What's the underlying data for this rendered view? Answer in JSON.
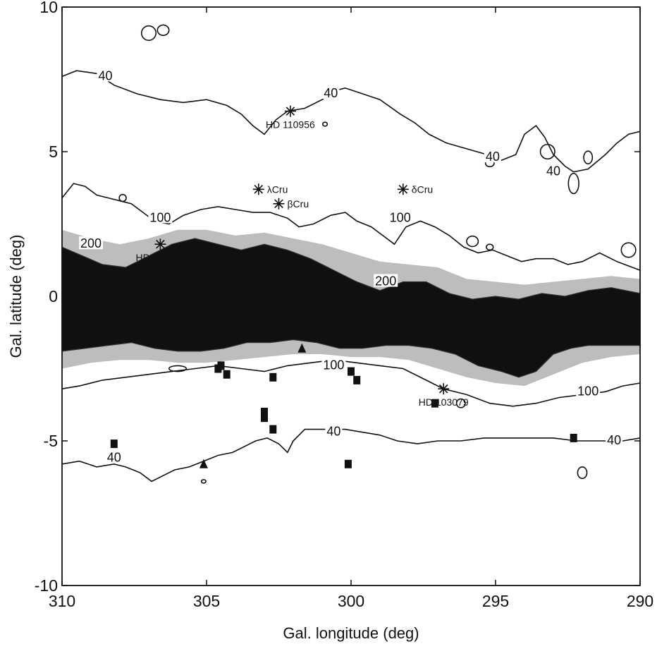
{
  "chart_data": {
    "type": "contour",
    "xlabel": "Gal. longitude (deg)",
    "ylabel": "Gal. latitude (deg)",
    "xlim": [
      310,
      290
    ],
    "ylim": [
      -10,
      10
    ],
    "x_ticks": [
      310,
      305,
      300,
      295,
      290
    ],
    "y_ticks": [
      10,
      5,
      0,
      -5,
      -10
    ],
    "x_tick_labels": [
      "310",
      "305",
      "300",
      "295",
      "290"
    ],
    "y_tick_labels": [
      "10",
      "5",
      "0",
      "-5",
      "-10"
    ],
    "grid": false,
    "contour_levels": [
      40,
      100,
      200
    ],
    "contour_labels": [
      {
        "text": "40",
        "l": 308.5,
        "b": 7.6
      },
      {
        "text": "40",
        "l": 300.7,
        "b": 7.0
      },
      {
        "text": "40",
        "l": 295.1,
        "b": 4.8
      },
      {
        "text": "40",
        "l": 293.0,
        "b": 4.3
      },
      {
        "text": "100",
        "l": 306.6,
        "b": 2.7
      },
      {
        "text": "100",
        "l": 298.3,
        "b": 2.7
      },
      {
        "text": "200",
        "l": 309.0,
        "b": 1.8
      },
      {
        "text": "200",
        "l": 298.8,
        "b": 0.5
      },
      {
        "text": "100",
        "l": 300.6,
        "b": -2.4
      },
      {
        "text": "100",
        "l": 291.8,
        "b": -3.3
      },
      {
        "text": "40",
        "l": 300.6,
        "b": -4.7
      },
      {
        "text": "40",
        "l": 308.2,
        "b": -5.6
      },
      {
        "text": "40",
        "l": 290.9,
        "b": -5.0
      }
    ],
    "stars": [
      {
        "name": "HD 110956",
        "l": 302.1,
        "b": 6.4
      },
      {
        "name": "λCru",
        "l": 303.2,
        "b": 3.7
      },
      {
        "name": "βCru",
        "l": 302.5,
        "b": 3.2
      },
      {
        "name": "δCru",
        "l": 298.2,
        "b": 3.7
      },
      {
        "name": "HD 116087",
        "l": 306.6,
        "b": 1.8
      },
      {
        "name": "HD 103079",
        "l": 296.8,
        "b": -3.2
      }
    ],
    "squares": [
      {
        "l": 304.6,
        "b": -2.5
      },
      {
        "l": 304.5,
        "b": -2.4
      },
      {
        "l": 304.3,
        "b": -2.7
      },
      {
        "l": 302.7,
        "b": -2.8
      },
      {
        "l": 303.0,
        "b": -4.0
      },
      {
        "l": 303.0,
        "b": -4.2
      },
      {
        "l": 302.7,
        "b": -4.6
      },
      {
        "l": 308.2,
        "b": -5.1
      },
      {
        "l": 300.1,
        "b": -5.8
      },
      {
        "l": 300.0,
        "b": -2.6
      },
      {
        "l": 299.8,
        "b": -2.9
      },
      {
        "l": 297.1,
        "b": -3.7
      },
      {
        "l": 292.3,
        "b": -4.9
      }
    ],
    "triangles": [
      {
        "l": 301.7,
        "b": -1.8
      },
      {
        "l": 305.1,
        "b": -5.8
      }
    ],
    "contour_40_north": [
      [
        310,
        7.6
      ],
      [
        309.5,
        7.8
      ],
      [
        308.8,
        7.7
      ],
      [
        308.2,
        7.3
      ],
      [
        307.4,
        7.0
      ],
      [
        306.6,
        6.8
      ],
      [
        305.8,
        6.7
      ],
      [
        305.0,
        6.8
      ],
      [
        304.3,
        6.6
      ],
      [
        303.8,
        6.3
      ],
      [
        303.4,
        5.9
      ],
      [
        303.0,
        5.6
      ],
      [
        302.6,
        6.1
      ],
      [
        302.2,
        6.4
      ],
      [
        301.6,
        6.5
      ],
      [
        301.0,
        6.8
      ],
      [
        300.6,
        7.1
      ],
      [
        300.2,
        7.2
      ],
      [
        299.6,
        7.0
      ],
      [
        299.0,
        6.8
      ],
      [
        298.3,
        6.3
      ],
      [
        297.8,
        6.0
      ],
      [
        297.3,
        5.6
      ],
      [
        296.7,
        5.3
      ],
      [
        296.0,
        5.1
      ],
      [
        295.3,
        4.9
      ],
      [
        294.8,
        4.7
      ],
      [
        294.3,
        4.9
      ],
      [
        294.0,
        5.6
      ],
      [
        293.6,
        5.9
      ],
      [
        293.3,
        5.5
      ],
      [
        293.0,
        4.9
      ],
      [
        292.6,
        4.5
      ],
      [
        292.3,
        4.3
      ],
      [
        291.8,
        4.4
      ],
      [
        291.2,
        4.9
      ],
      [
        290.8,
        5.3
      ],
      [
        290.4,
        5.6
      ],
      [
        290.0,
        5.7
      ]
    ],
    "contour_100_north": [
      [
        310,
        3.4
      ],
      [
        309.6,
        3.9
      ],
      [
        309.2,
        3.8
      ],
      [
        308.8,
        3.5
      ],
      [
        308.4,
        3.4
      ],
      [
        308.0,
        3.3
      ],
      [
        307.6,
        3.2
      ],
      [
        307.2,
        2.9
      ],
      [
        306.8,
        2.6
      ],
      [
        306.3,
        2.5
      ],
      [
        305.8,
        2.8
      ],
      [
        305.2,
        3.0
      ],
      [
        304.6,
        3.1
      ],
      [
        304.0,
        3.0
      ],
      [
        303.4,
        2.9
      ],
      [
        302.8,
        2.9
      ],
      [
        302.2,
        2.7
      ],
      [
        301.8,
        2.4
      ],
      [
        301.3,
        2.5
      ],
      [
        300.7,
        2.8
      ],
      [
        300.2,
        2.9
      ],
      [
        299.8,
        2.6
      ],
      [
        299.3,
        2.4
      ],
      [
        298.9,
        2.1
      ],
      [
        298.5,
        1.8
      ],
      [
        298.1,
        2.4
      ],
      [
        297.6,
        2.6
      ],
      [
        297.1,
        2.4
      ],
      [
        296.6,
        2.1
      ],
      [
        296.1,
        1.7
      ],
      [
        295.6,
        1.5
      ],
      [
        295.1,
        1.6
      ],
      [
        294.6,
        1.4
      ],
      [
        294.1,
        1.2
      ],
      [
        293.6,
        1.3
      ],
      [
        293.0,
        1.3
      ],
      [
        292.5,
        1.1
      ],
      [
        292.0,
        1.2
      ],
      [
        291.4,
        1.5
      ],
      [
        290.8,
        1.2
      ],
      [
        290.0,
        0.9
      ]
    ],
    "contour_100_south": [
      [
        310,
        -3.2
      ],
      [
        309.4,
        -3.1
      ],
      [
        308.6,
        -2.9
      ],
      [
        307.8,
        -2.8
      ],
      [
        307.0,
        -2.7
      ],
      [
        306.2,
        -2.6
      ],
      [
        305.4,
        -2.5
      ],
      [
        304.6,
        -2.4
      ],
      [
        303.8,
        -2.5
      ],
      [
        303.0,
        -2.6
      ],
      [
        302.2,
        -2.4
      ],
      [
        301.4,
        -2.3
      ],
      [
        300.6,
        -2.2
      ],
      [
        299.8,
        -2.3
      ],
      [
        299.0,
        -2.4
      ],
      [
        298.2,
        -2.5
      ],
      [
        297.4,
        -2.9
      ],
      [
        296.8,
        -3.2
      ],
      [
        296.0,
        -3.4
      ],
      [
        295.2,
        -3.7
      ],
      [
        294.4,
        -3.8
      ],
      [
        293.6,
        -3.7
      ],
      [
        292.8,
        -3.5
      ],
      [
        292.0,
        -3.4
      ],
      [
        291.2,
        -3.3
      ],
      [
        290.6,
        -3.1
      ],
      [
        290.0,
        -3.0
      ]
    ],
    "contour_40_south": [
      [
        310,
        -5.8
      ],
      [
        309.4,
        -5.7
      ],
      [
        308.8,
        -5.9
      ],
      [
        308.2,
        -5.8
      ],
      [
        307.8,
        -5.9
      ],
      [
        307.3,
        -6.1
      ],
      [
        306.9,
        -6.4
      ],
      [
        306.5,
        -6.2
      ],
      [
        306.1,
        -6.0
      ],
      [
        305.6,
        -5.9
      ],
      [
        305.1,
        -5.7
      ],
      [
        304.6,
        -5.5
      ],
      [
        304.1,
        -5.4
      ],
      [
        303.7,
        -5.2
      ],
      [
        303.3,
        -5.0
      ],
      [
        302.9,
        -4.9
      ],
      [
        302.5,
        -5.1
      ],
      [
        302.2,
        -5.4
      ],
      [
        302.0,
        -5.0
      ],
      [
        301.6,
        -4.6
      ],
      [
        301.2,
        -4.6
      ],
      [
        300.7,
        -4.6
      ],
      [
        300.2,
        -4.6
      ],
      [
        299.6,
        -4.7
      ],
      [
        299.0,
        -4.8
      ],
      [
        298.4,
        -5.0
      ],
      [
        297.7,
        -5.1
      ],
      [
        297.0,
        -5.0
      ],
      [
        296.2,
        -5.0
      ],
      [
        295.4,
        -4.9
      ],
      [
        294.6,
        -4.9
      ],
      [
        293.8,
        -4.9
      ],
      [
        293.0,
        -4.9
      ],
      [
        292.2,
        -5.0
      ],
      [
        291.4,
        -5.0
      ],
      [
        290.6,
        -5.0
      ],
      [
        290.0,
        -4.9
      ]
    ],
    "dense_band_top": [
      [
        310,
        1.7
      ],
      [
        309.3,
        1.4
      ],
      [
        308.6,
        1.1
      ],
      [
        307.8,
        1.0
      ],
      [
        307.0,
        1.4
      ],
      [
        306.2,
        1.8
      ],
      [
        305.4,
        2.0
      ],
      [
        304.6,
        1.8
      ],
      [
        303.8,
        1.6
      ],
      [
        303.0,
        1.8
      ],
      [
        302.2,
        1.6
      ],
      [
        301.4,
        1.3
      ],
      [
        300.6,
        0.9
      ],
      [
        299.8,
        0.5
      ],
      [
        299.0,
        0.2
      ],
      [
        298.2,
        0.5
      ],
      [
        297.4,
        0.5
      ],
      [
        296.6,
        0.1
      ],
      [
        295.8,
        -0.1
      ],
      [
        295.0,
        0.0
      ],
      [
        294.2,
        -0.1
      ],
      [
        293.4,
        0.1
      ],
      [
        292.6,
        0.0
      ],
      [
        291.8,
        0.2
      ],
      [
        291.0,
        0.3
      ],
      [
        290.0,
        0.1
      ]
    ],
    "dense_band_bottom": [
      [
        310,
        -1.9
      ],
      [
        309.2,
        -1.8
      ],
      [
        308.4,
        -1.7
      ],
      [
        307.6,
        -1.6
      ],
      [
        306.8,
        -1.8
      ],
      [
        306.0,
        -1.9
      ],
      [
        305.2,
        -1.9
      ],
      [
        304.4,
        -1.8
      ],
      [
        303.6,
        -1.6
      ],
      [
        302.8,
        -1.6
      ],
      [
        302.0,
        -1.5
      ],
      [
        301.2,
        -1.6
      ],
      [
        300.4,
        -1.8
      ],
      [
        299.6,
        -1.8
      ],
      [
        298.8,
        -1.7
      ],
      [
        298.0,
        -1.7
      ],
      [
        297.2,
        -1.8
      ],
      [
        296.4,
        -2.0
      ],
      [
        295.6,
        -2.4
      ],
      [
        294.8,
        -2.6
      ],
      [
        294.2,
        -2.8
      ],
      [
        293.6,
        -2.6
      ],
      [
        293.0,
        -2.0
      ],
      [
        292.4,
        -1.8
      ],
      [
        291.8,
        -1.7
      ],
      [
        291.0,
        -1.7
      ],
      [
        290.0,
        -1.7
      ]
    ],
    "halo_top": [
      [
        310,
        2.3
      ],
      [
        309.0,
        2.0
      ],
      [
        308.0,
        1.8
      ],
      [
        307.0,
        2.0
      ],
      [
        306.0,
        2.3
      ],
      [
        305.0,
        2.3
      ],
      [
        304.0,
        2.1
      ],
      [
        303.0,
        2.2
      ],
      [
        302.0,
        2.0
      ],
      [
        301.0,
        1.8
      ],
      [
        300.0,
        1.5
      ],
      [
        299.0,
        1.2
      ],
      [
        298.0,
        1.1
      ],
      [
        297.0,
        1.0
      ],
      [
        296.0,
        0.6
      ],
      [
        295.0,
        0.5
      ],
      [
        294.0,
        0.4
      ],
      [
        293.0,
        0.5
      ],
      [
        292.0,
        0.6
      ],
      [
        291.0,
        0.7
      ],
      [
        290.0,
        0.6
      ]
    ],
    "halo_bottom": [
      [
        310,
        -2.5
      ],
      [
        309.0,
        -2.3
      ],
      [
        308.0,
        -2.2
      ],
      [
        307.0,
        -2.2
      ],
      [
        306.0,
        -2.3
      ],
      [
        305.0,
        -2.3
      ],
      [
        304.0,
        -2.2
      ],
      [
        303.0,
        -2.1
      ],
      [
        302.0,
        -2.0
      ],
      [
        301.0,
        -2.0
      ],
      [
        300.0,
        -2.1
      ],
      [
        299.0,
        -2.1
      ],
      [
        298.0,
        -2.2
      ],
      [
        297.0,
        -2.5
      ],
      [
        296.0,
        -2.8
      ],
      [
        295.0,
        -3.0
      ],
      [
        294.0,
        -3.1
      ],
      [
        293.0,
        -2.7
      ],
      [
        292.0,
        -2.3
      ],
      [
        291.0,
        -2.1
      ],
      [
        290.0,
        -2.0
      ]
    ],
    "islands": [
      {
        "l": 307.0,
        "b": 9.1,
        "rl": 0.25,
        "rb": 0.25
      },
      {
        "l": 306.5,
        "b": 9.2,
        "rl": 0.2,
        "rb": 0.18
      },
      {
        "l": 300.9,
        "b": 5.95,
        "rl": 0.08,
        "rb": 0.07
      },
      {
        "l": 295.2,
        "b": 4.6,
        "rl": 0.15,
        "rb": 0.12
      },
      {
        "l": 293.2,
        "b": 5.0,
        "rl": 0.25,
        "rb": 0.25
      },
      {
        "l": 292.3,
        "b": 3.9,
        "rl": 0.18,
        "rb": 0.35
      },
      {
        "l": 291.8,
        "b": 4.8,
        "rl": 0.15,
        "rb": 0.22
      },
      {
        "l": 307.9,
        "b": 3.4,
        "rl": 0.12,
        "rb": 0.12
      },
      {
        "l": 295.8,
        "b": 1.9,
        "rl": 0.2,
        "rb": 0.18
      },
      {
        "l": 295.2,
        "b": 1.7,
        "rl": 0.12,
        "rb": 0.1
      },
      {
        "l": 290.4,
        "b": 1.6,
        "rl": 0.25,
        "rb": 0.25
      },
      {
        "l": 306.0,
        "b": -2.5,
        "rl": 0.3,
        "rb": 0.1
      },
      {
        "l": 296.2,
        "b": -3.7,
        "rl": 0.15,
        "rb": 0.15
      },
      {
        "l": 292.0,
        "b": -6.1,
        "rl": 0.16,
        "rb": 0.2
      },
      {
        "l": 305.1,
        "b": -6.4,
        "rl": 0.08,
        "rb": 0.06
      }
    ]
  }
}
